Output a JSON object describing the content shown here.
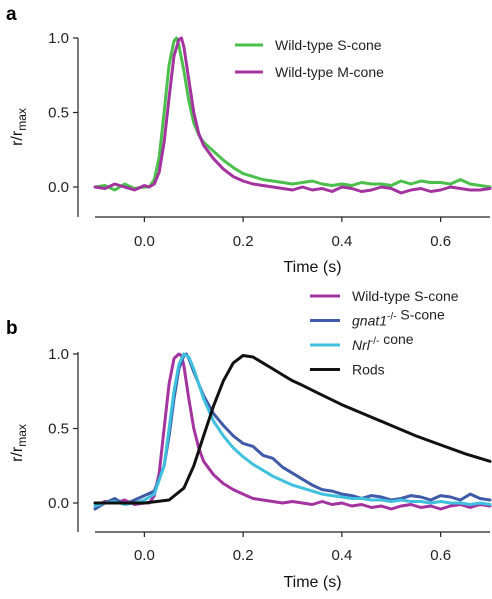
{
  "chart_data": [
    {
      "panel": "a",
      "type": "line",
      "xlabel": "Time (s)",
      "ylabel": "r/r",
      "ylabel_sub": "max",
      "xlim": [
        -0.1,
        0.7
      ],
      "ylim": [
        -0.1,
        1.05
      ],
      "xticks": [
        0.0,
        0.2,
        0.4,
        0.6
      ],
      "xtick_labels": [
        "0.0",
        "0.2",
        "0.4",
        "0.6"
      ],
      "yticks": [
        0.0,
        0.5,
        1.0
      ],
      "ytick_labels": [
        "0.0",
        "0.5",
        "1.0"
      ],
      "grid": false,
      "legend": "top-right",
      "series": [
        {
          "name": "Wild-type S-cone",
          "color": "#4bbf4b",
          "x": [
            -0.1,
            -0.08,
            -0.06,
            -0.04,
            -0.02,
            0.0,
            0.01,
            0.02,
            0.03,
            0.04,
            0.05,
            0.06,
            0.065,
            0.07,
            0.08,
            0.09,
            0.1,
            0.11,
            0.12,
            0.14,
            0.16,
            0.18,
            0.2,
            0.22,
            0.24,
            0.26,
            0.28,
            0.3,
            0.32,
            0.34,
            0.36,
            0.38,
            0.4,
            0.42,
            0.44,
            0.46,
            0.48,
            0.5,
            0.52,
            0.54,
            0.56,
            0.58,
            0.6,
            0.62,
            0.64,
            0.66,
            0.68,
            0.7
          ],
          "y": [
            0.0,
            0.01,
            -0.02,
            0.02,
            -0.01,
            0.0,
            0.0,
            0.05,
            0.2,
            0.5,
            0.82,
            0.98,
            1.0,
            0.95,
            0.78,
            0.58,
            0.43,
            0.35,
            0.3,
            0.24,
            0.18,
            0.13,
            0.09,
            0.07,
            0.05,
            0.04,
            0.03,
            0.02,
            0.03,
            0.04,
            0.02,
            0.01,
            0.02,
            0.01,
            0.03,
            0.02,
            0.02,
            0.01,
            0.04,
            0.02,
            0.04,
            0.03,
            0.03,
            0.02,
            0.05,
            0.02,
            0.01,
            0.0
          ]
        },
        {
          "name": "Wild-type M-cone",
          "color": "#a3339e",
          "x": [
            -0.1,
            -0.08,
            -0.06,
            -0.04,
            -0.02,
            0.0,
            0.01,
            0.02,
            0.03,
            0.04,
            0.05,
            0.06,
            0.07,
            0.075,
            0.08,
            0.09,
            0.1,
            0.11,
            0.12,
            0.14,
            0.16,
            0.18,
            0.2,
            0.22,
            0.24,
            0.26,
            0.28,
            0.3,
            0.32,
            0.34,
            0.36,
            0.38,
            0.4,
            0.42,
            0.44,
            0.46,
            0.48,
            0.5,
            0.52,
            0.54,
            0.56,
            0.58,
            0.6,
            0.62,
            0.64,
            0.66,
            0.68,
            0.7
          ],
          "y": [
            0.0,
            -0.01,
            0.02,
            0.0,
            -0.02,
            0.01,
            0.0,
            0.02,
            0.1,
            0.3,
            0.6,
            0.88,
            0.99,
            1.0,
            0.94,
            0.72,
            0.5,
            0.36,
            0.28,
            0.19,
            0.12,
            0.07,
            0.04,
            0.02,
            0.01,
            0.0,
            -0.01,
            -0.02,
            0.0,
            -0.02,
            -0.01,
            -0.03,
            0.0,
            -0.01,
            -0.03,
            -0.02,
            0.0,
            -0.01,
            -0.04,
            -0.02,
            -0.01,
            -0.03,
            -0.02,
            0.0,
            -0.01,
            -0.02,
            -0.02,
            -0.01
          ]
        }
      ]
    },
    {
      "panel": "b",
      "type": "line",
      "xlabel": "Time (s)",
      "ylabel": "r/r",
      "ylabel_sub": "max",
      "xlim": [
        -0.1,
        0.7
      ],
      "ylim": [
        -0.1,
        1.05
      ],
      "xticks": [
        0.0,
        0.2,
        0.4,
        0.6
      ],
      "xtick_labels": [
        "0.0",
        "0.2",
        "0.4",
        "0.6"
      ],
      "yticks": [
        0.0,
        0.5,
        1.0
      ],
      "ytick_labels": [
        "0.0",
        "0.5",
        "1.0"
      ],
      "grid": false,
      "legend": "top-right",
      "series": [
        {
          "name": "Wild-type S-cone",
          "name_parts": [
            {
              "text": "Wild-type S-cone"
            }
          ],
          "color": "#a3339e",
          "x": [
            -0.1,
            -0.08,
            -0.06,
            -0.04,
            -0.02,
            0.0,
            0.01,
            0.02,
            0.03,
            0.04,
            0.05,
            0.06,
            0.07,
            0.075,
            0.08,
            0.09,
            0.1,
            0.11,
            0.12,
            0.14,
            0.16,
            0.18,
            0.2,
            0.22,
            0.24,
            0.26,
            0.28,
            0.3,
            0.32,
            0.34,
            0.36,
            0.38,
            0.4,
            0.42,
            0.44,
            0.46,
            0.48,
            0.5,
            0.52,
            0.54,
            0.56,
            0.58,
            0.6,
            0.62,
            0.64,
            0.66,
            0.68,
            0.7
          ],
          "y": [
            -0.02,
            0.01,
            0.0,
            0.02,
            -0.01,
            0.0,
            0.0,
            0.05,
            0.2,
            0.5,
            0.8,
            0.97,
            1.0,
            0.99,
            0.92,
            0.7,
            0.5,
            0.37,
            0.28,
            0.19,
            0.13,
            0.09,
            0.06,
            0.03,
            0.02,
            0.01,
            0.0,
            0.01,
            0.0,
            -0.01,
            0.01,
            -0.01,
            0.0,
            -0.02,
            -0.01,
            -0.03,
            -0.02,
            -0.04,
            -0.02,
            -0.01,
            -0.03,
            -0.02,
            -0.04,
            -0.02,
            -0.01,
            -0.03,
            -0.01,
            -0.02
          ]
        },
        {
          "name": "gnat1-/- S-cone",
          "name_parts": [
            {
              "text": "gnat1",
              "italic": true
            },
            {
              "text": "-/-",
              "sup": true
            },
            {
              "text": " S-cone"
            }
          ],
          "color": "#3e5aa8",
          "x": [
            -0.1,
            -0.08,
            -0.06,
            -0.04,
            -0.02,
            0.0,
            0.02,
            0.04,
            0.05,
            0.06,
            0.07,
            0.08,
            0.085,
            0.09,
            0.1,
            0.11,
            0.12,
            0.14,
            0.16,
            0.18,
            0.2,
            0.22,
            0.24,
            0.26,
            0.28,
            0.3,
            0.32,
            0.34,
            0.36,
            0.38,
            0.4,
            0.42,
            0.44,
            0.46,
            0.48,
            0.5,
            0.52,
            0.54,
            0.56,
            0.58,
            0.6,
            0.62,
            0.64,
            0.66,
            0.68,
            0.7
          ],
          "y": [
            -0.04,
            0.0,
            0.03,
            -0.01,
            0.02,
            0.05,
            0.08,
            0.25,
            0.45,
            0.7,
            0.9,
            0.99,
            1.0,
            0.97,
            0.88,
            0.8,
            0.72,
            0.6,
            0.52,
            0.45,
            0.4,
            0.38,
            0.32,
            0.3,
            0.24,
            0.2,
            0.16,
            0.12,
            0.09,
            0.08,
            0.06,
            0.05,
            0.03,
            0.05,
            0.04,
            0.02,
            0.03,
            0.05,
            0.04,
            0.02,
            0.05,
            0.04,
            0.02,
            0.06,
            0.03,
            0.02
          ]
        },
        {
          "name": "Nrl-/- cone",
          "name_parts": [
            {
              "text": "Nrl",
              "italic": true
            },
            {
              "text": "-/-",
              "sup": true
            },
            {
              "text": "  cone"
            }
          ],
          "color": "#3fc0dc",
          "x": [
            -0.1,
            -0.08,
            -0.06,
            -0.04,
            -0.02,
            0.0,
            0.02,
            0.04,
            0.05,
            0.06,
            0.07,
            0.08,
            0.09,
            0.1,
            0.11,
            0.12,
            0.14,
            0.16,
            0.18,
            0.2,
            0.22,
            0.24,
            0.26,
            0.28,
            0.3,
            0.32,
            0.34,
            0.36,
            0.38,
            0.4,
            0.42,
            0.44,
            0.46,
            0.48,
            0.5,
            0.52,
            0.54,
            0.56,
            0.58,
            0.6,
            0.62,
            0.64,
            0.66,
            0.68,
            0.7
          ],
          "y": [
            -0.02,
            0.0,
            0.01,
            -0.01,
            0.0,
            0.02,
            0.06,
            0.25,
            0.5,
            0.75,
            0.93,
            1.0,
            0.98,
            0.9,
            0.8,
            0.7,
            0.55,
            0.45,
            0.37,
            0.31,
            0.26,
            0.22,
            0.18,
            0.15,
            0.12,
            0.1,
            0.08,
            0.06,
            0.05,
            0.04,
            0.03,
            0.03,
            0.02,
            0.02,
            0.01,
            0.02,
            0.01,
            0.01,
            0.0,
            0.01,
            0.0,
            0.0,
            -0.01,
            0.0,
            -0.01
          ]
        },
        {
          "name": "Rods",
          "name_parts": [
            {
              "text": "Rods"
            }
          ],
          "color": "#111111",
          "x": [
            -0.1,
            -0.05,
            0.0,
            0.05,
            0.08,
            0.1,
            0.12,
            0.14,
            0.16,
            0.18,
            0.2,
            0.22,
            0.24,
            0.26,
            0.28,
            0.3,
            0.32,
            0.35,
            0.4,
            0.45,
            0.5,
            0.55,
            0.6,
            0.65,
            0.7
          ],
          "y": [
            0.0,
            0.0,
            0.0,
            0.02,
            0.1,
            0.25,
            0.45,
            0.65,
            0.82,
            0.94,
            0.99,
            0.98,
            0.94,
            0.9,
            0.86,
            0.82,
            0.79,
            0.74,
            0.66,
            0.59,
            0.52,
            0.45,
            0.39,
            0.33,
            0.28
          ]
        }
      ]
    }
  ]
}
